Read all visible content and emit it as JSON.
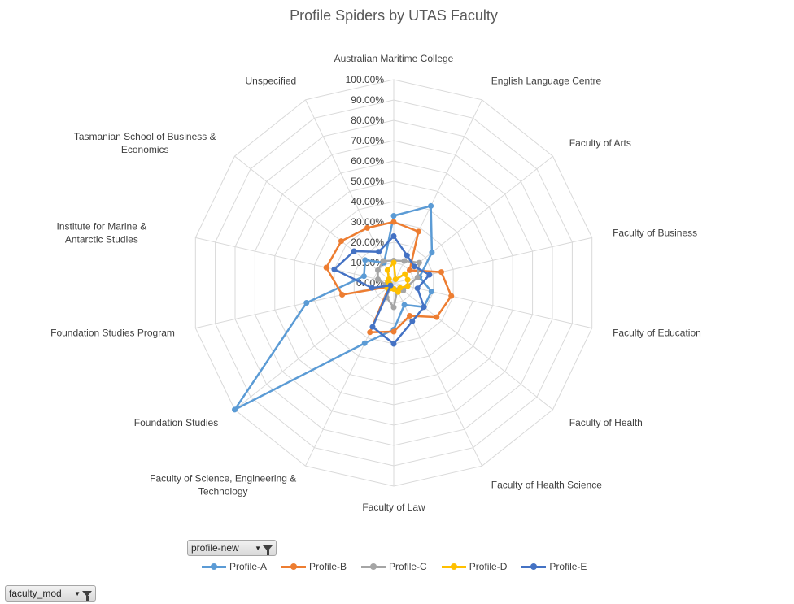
{
  "chart_data": {
    "type": "radar",
    "title": "Profile Spiders by UTAS Faculty",
    "categories": [
      "Australian Maritime College",
      "English Language Centre",
      "Faculty of Arts",
      "Faculty of Business",
      "Faculty of Education",
      "Faculty of Health",
      "Faculty of Health Science",
      "Faculty of Law",
      "Faculty of Science, Engineering & Technology",
      "Foundation Studies",
      "Foundation Studies Program",
      "Institute for Marine & Antarctic Studies",
      "Tasmanian School of Business & Economics",
      "Unspecified"
    ],
    "ticks": [
      "0.00%",
      "10.00%",
      "20.00%",
      "30.00%",
      "40.00%",
      "50.00%",
      "60.00%",
      "70.00%",
      "80.00%",
      "90.00%",
      "100.00%"
    ],
    "ylim": [
      0,
      100
    ],
    "grid": true,
    "legend_position": "bottom",
    "series": [
      {
        "name": "Profile-A",
        "color": "#5B9BD5",
        "values": [
          33,
          42,
          24,
          13,
          19,
          19,
          12,
          23,
          33,
          100,
          44,
          15,
          18,
          11
        ]
      },
      {
        "name": "Profile-B",
        "color": "#ED7D31",
        "values": [
          30,
          28,
          10,
          24,
          29,
          27,
          18,
          24,
          27,
          3,
          26,
          34,
          33,
          30
        ]
      },
      {
        "name": "Profile-C",
        "color": "#A5A5A5",
        "values": [
          11,
          12,
          16,
          12,
          7,
          6,
          4,
          12,
          8,
          2,
          4,
          8,
          10,
          12
        ]
      },
      {
        "name": "Profile-D",
        "color": "#FFC000",
        "values": [
          10,
          2,
          7,
          7,
          7,
          4,
          5,
          3,
          3,
          4,
          2,
          3,
          3,
          7
        ]
      },
      {
        "name": "Profile-E",
        "color": "#4472C4",
        "values": [
          23,
          15,
          13,
          18,
          12,
          19,
          21,
          30,
          24,
          2,
          11,
          30,
          25,
          17
        ]
      }
    ]
  },
  "filters": {
    "series_field": "profile-new",
    "axis_field": "faculty_mod"
  },
  "icons": {
    "filter": "funnel-icon",
    "dropdown": "dropdown-arrow-icon"
  }
}
